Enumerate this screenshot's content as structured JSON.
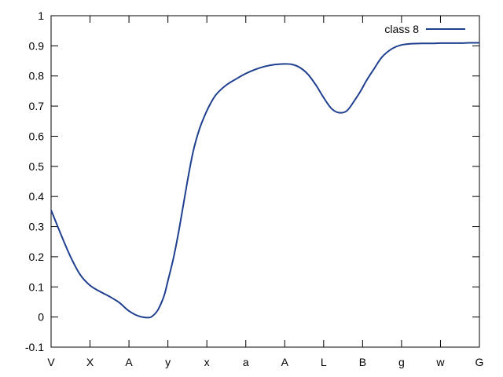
{
  "chart_data": {
    "type": "line",
    "title": "",
    "xlabel": "",
    "ylabel": "",
    "xlim": [
      0,
      11
    ],
    "ylim": [
      -0.1,
      1
    ],
    "grid": false,
    "legend_position": "top-right",
    "x_tick_labels": [
      "V",
      "X",
      "A",
      "y",
      "x",
      "a",
      "A",
      "L",
      "B",
      "g",
      "w",
      "G"
    ],
    "y_tick_labels": [
      "-0.1",
      "0",
      "0.1",
      "0.2",
      "0.3",
      "0.4",
      "0.5",
      "0.6",
      "0.7",
      "0.8",
      "0.9",
      "1"
    ],
    "series": [
      {
        "name": "class 8",
        "color": "#1f3f8f",
        "x": [
          0,
          0.25,
          0.5,
          0.75,
          1.0,
          1.25,
          1.5,
          1.75,
          2.0,
          2.25,
          2.5,
          2.62,
          2.75,
          2.9,
          3.0,
          3.15,
          3.3,
          3.5,
          3.65,
          3.8,
          3.95,
          4.1,
          4.25,
          4.5,
          4.75,
          5.0,
          5.25,
          5.5,
          5.75,
          6.0,
          6.2,
          6.4,
          6.6,
          6.8,
          7.0,
          7.2,
          7.4,
          7.6,
          7.8,
          7.95,
          8.1,
          8.3,
          8.5,
          8.75,
          9.0,
          9.25,
          9.5,
          9.75,
          10.0,
          10.25,
          10.5,
          10.75,
          11.0
        ],
        "y": [
          0.355,
          0.275,
          0.2,
          0.14,
          0.105,
          0.085,
          0.068,
          0.048,
          0.02,
          0.003,
          -0.002,
          0.005,
          0.025,
          0.07,
          0.12,
          0.2,
          0.3,
          0.45,
          0.55,
          0.62,
          0.67,
          0.71,
          0.74,
          0.77,
          0.79,
          0.808,
          0.822,
          0.832,
          0.838,
          0.84,
          0.838,
          0.827,
          0.805,
          0.77,
          0.728,
          0.692,
          0.678,
          0.685,
          0.72,
          0.75,
          0.785,
          0.825,
          0.863,
          0.89,
          0.903,
          0.907,
          0.908,
          0.908,
          0.909,
          0.909,
          0.909,
          0.91,
          0.91
        ]
      }
    ]
  }
}
